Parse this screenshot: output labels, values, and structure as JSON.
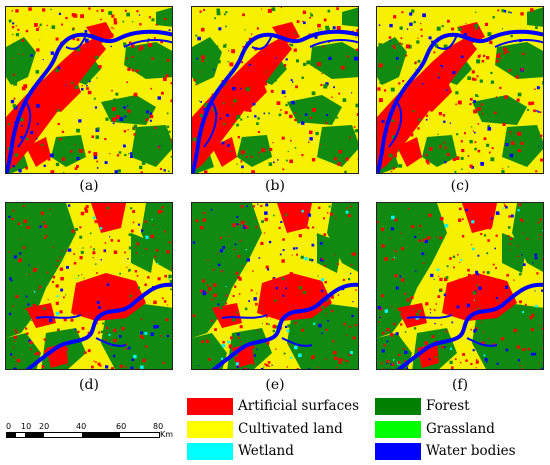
{
  "panels": [
    {
      "id": "a",
      "caption": "(a)",
      "scene": "river-city"
    },
    {
      "id": "b",
      "caption": "(b)",
      "scene": "river-city"
    },
    {
      "id": "c",
      "caption": "(c)",
      "scene": "river-city"
    },
    {
      "id": "d",
      "caption": "(d)",
      "scene": "forest-city"
    },
    {
      "id": "e",
      "caption": "(e)",
      "scene": "forest-city"
    },
    {
      "id": "f",
      "caption": "(f)",
      "scene": "forest-city"
    }
  ],
  "legend": [
    {
      "label": "Artificial surfaces",
      "color": "#ff0000"
    },
    {
      "label": "Forest",
      "color": "#008000"
    },
    {
      "label": "Cultivated land",
      "color": "#ffff00"
    },
    {
      "label": "Grassland",
      "color": "#00ff00"
    },
    {
      "label": "Wetland",
      "color": "#00ffff"
    },
    {
      "label": "Water bodies",
      "color": "#0000ff"
    }
  ],
  "scalebar": {
    "ticks": [
      "0",
      "10",
      "20",
      "40",
      "60",
      "80"
    ],
    "unit": "Km"
  },
  "colors": {
    "cultivated": "#f7f000",
    "artificial": "#ff0000",
    "forest": "#108a10",
    "water": "#0000ff",
    "wetland": "#00ffff"
  }
}
